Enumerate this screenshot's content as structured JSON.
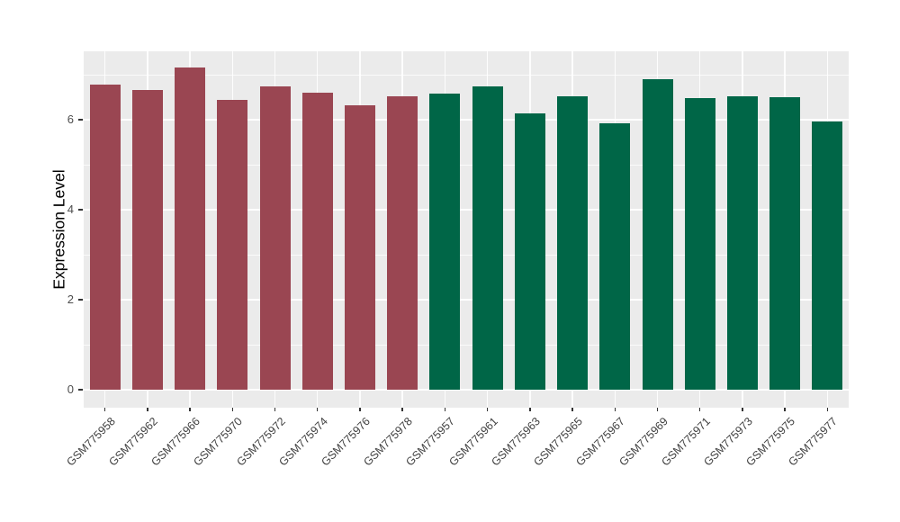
{
  "chart_data": {
    "type": "bar",
    "title": "",
    "xlabel": "",
    "ylabel": "Expression Level",
    "categories": [
      "GSM775958",
      "GSM775962",
      "GSM775966",
      "GSM775970",
      "GSM775972",
      "GSM775974",
      "GSM775976",
      "GSM775978",
      "GSM775957",
      "GSM775961",
      "GSM775963",
      "GSM775965",
      "GSM775967",
      "GSM775969",
      "GSM775971",
      "GSM775973",
      "GSM775975",
      "GSM775977"
    ],
    "values": [
      6.78,
      6.66,
      7.16,
      6.44,
      6.74,
      6.6,
      6.32,
      6.52,
      6.58,
      6.74,
      6.14,
      6.52,
      5.92,
      6.9,
      6.47,
      6.52,
      6.5,
      5.96
    ],
    "bar_groups": [
      "group-1",
      "group-1",
      "group-1",
      "group-1",
      "group-1",
      "group-1",
      "group-1",
      "group-1",
      "group-2",
      "group-2",
      "group-2",
      "group-2",
      "group-2",
      "group-2",
      "group-2",
      "group-2",
      "group-2",
      "group-2"
    ],
    "group_colors": {
      "group-1": "#9A4652",
      "group-2": "#006647"
    },
    "ylim": [
      -0.4,
      7.52
    ],
    "yticks": [
      0,
      2,
      4,
      6
    ],
    "yticks_minor": [
      1,
      3,
      5,
      7
    ],
    "x_tick_angle": 45,
    "legend": "none",
    "grid": true,
    "panel_background": "#EBEBEB",
    "gridline_color": "#FFFFFF",
    "tick_color": "#333333",
    "tick_label_color": "#4D4D4D"
  }
}
